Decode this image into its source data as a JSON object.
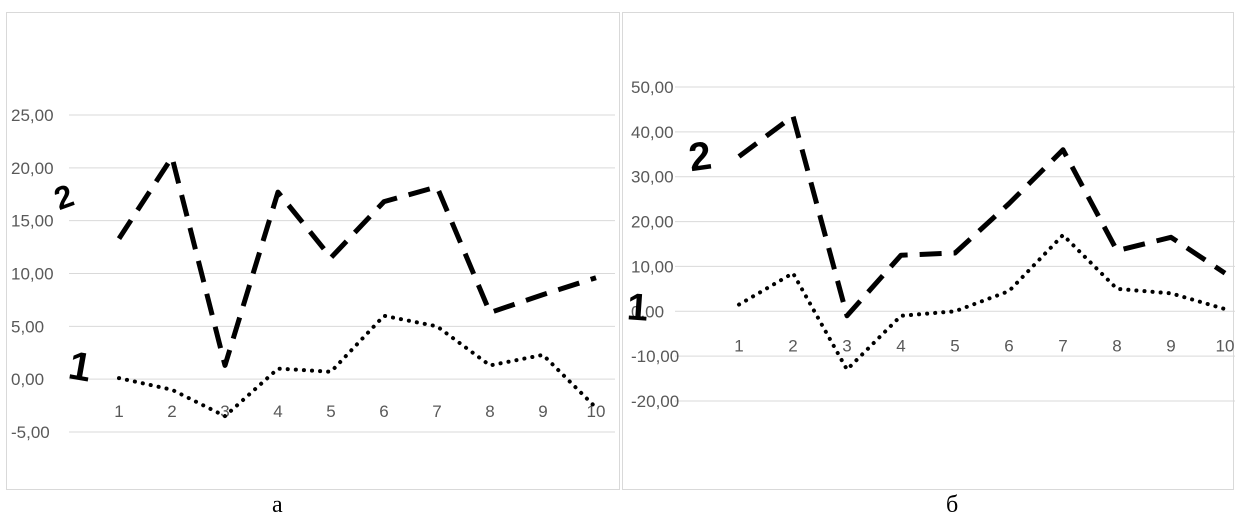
{
  "chart_data": [
    {
      "type": "line",
      "caption": "а",
      "categories": [
        "1",
        "2",
        "3",
        "4",
        "5",
        "6",
        "7",
        "8",
        "9",
        "10"
      ],
      "y_ticks": [
        "-5,00",
        "0,00",
        "5,00",
        "10,00",
        "15,00",
        "20,00",
        "25,00"
      ],
      "ylim": [
        -5,
        25
      ],
      "grid": true,
      "legend": "none",
      "series": [
        {
          "name": "2",
          "style": "dashed",
          "color": "#000000",
          "values": [
            13.3,
            21.0,
            1.3,
            17.7,
            11.5,
            16.8,
            18.2,
            6.3,
            8.0,
            9.6
          ]
        },
        {
          "name": "1",
          "style": "dotted",
          "color": "#000000",
          "values": [
            0.1,
            -1.0,
            -3.5,
            1.0,
            0.7,
            6.0,
            5.0,
            1.3,
            2.3,
            -2.7
          ]
        }
      ]
    },
    {
      "type": "line",
      "caption": "б",
      "categories": [
        "1",
        "2",
        "3",
        "4",
        "5",
        "6",
        "7",
        "8",
        "9",
        "10"
      ],
      "y_ticks": [
        "-20,00",
        "-10,00",
        "0,00",
        "10,00",
        "20,00",
        "30,00",
        "40,00",
        "50,00"
      ],
      "ylim": [
        -20,
        50
      ],
      "grid": true,
      "legend": "none",
      "series": [
        {
          "name": "2",
          "style": "dashed",
          "color": "#000000",
          "values": [
            34.5,
            43.5,
            -1.0,
            12.5,
            13.0,
            24.0,
            36.0,
            13.5,
            16.5,
            8.5
          ]
        },
        {
          "name": "1",
          "style": "dotted",
          "color": "#000000",
          "values": [
            1.5,
            8.5,
            -13.0,
            -1.0,
            0.0,
            4.5,
            17.0,
            5.0,
            4.0,
            0.5
          ]
        }
      ]
    }
  ],
  "colors": {
    "grid": "#d9d9d9",
    "tick_text": "#595959",
    "line": "#000000",
    "panel_border": "#d9d9d9"
  }
}
